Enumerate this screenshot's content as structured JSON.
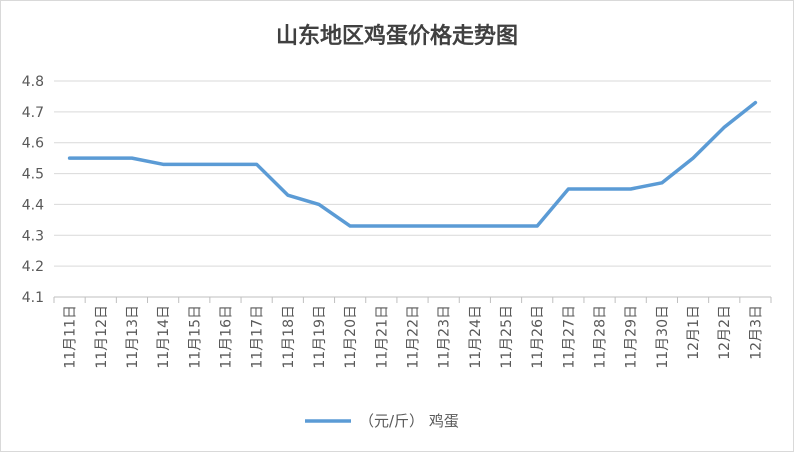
{
  "chart_data": {
    "type": "line",
    "title": "山东地区鸡蛋价格走势图",
    "xlabel": "",
    "ylabel": "",
    "categories": [
      "11月11日",
      "11月12日",
      "11月13日",
      "11月14日",
      "11月15日",
      "11月16日",
      "11月17日",
      "11月18日",
      "11月19日",
      "11月20日",
      "11月21日",
      "11月22日",
      "11月23日",
      "11月24日",
      "11月25日",
      "11月26日",
      "11月27日",
      "11月28日",
      "11月29日",
      "11月30日",
      "12月1日",
      "12月2日",
      "12月3日"
    ],
    "series": [
      {
        "name": "（元/斤） 鸡蛋",
        "color": "#5b9bd5",
        "values": [
          4.55,
          4.55,
          4.55,
          4.53,
          4.53,
          4.53,
          4.53,
          4.43,
          4.4,
          4.33,
          4.33,
          4.33,
          4.33,
          4.33,
          4.33,
          4.33,
          4.45,
          4.45,
          4.45,
          4.47,
          4.55,
          4.65,
          4.73
        ]
      }
    ],
    "ylim": [
      4.1,
      4.8
    ],
    "yticks": [
      4.1,
      4.2,
      4.3,
      4.4,
      4.5,
      4.6,
      4.7,
      4.8
    ],
    "grid": true,
    "legend_position": "bottom"
  },
  "colors": {
    "line": "#5b9bd5",
    "grid": "#d9d9d9",
    "axis": "#bfbfbf",
    "text": "#595959",
    "title": "#404040"
  }
}
